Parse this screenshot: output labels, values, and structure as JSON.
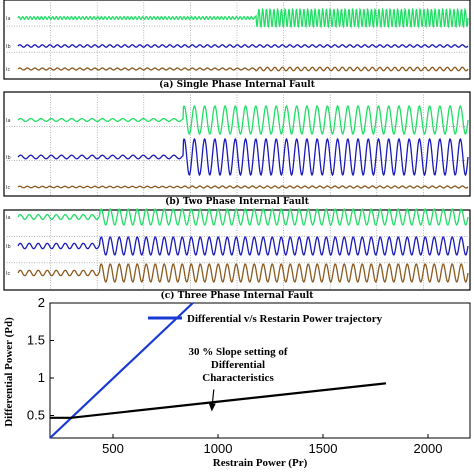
{
  "chart_data": [
    {
      "type": "line",
      "panel": "single-phase",
      "caption": "(a) Single Phase Internal Fault",
      "trace_labels": [
        "Ia",
        "Ib",
        "Ic"
      ],
      "fault_time_fraction": 0.54,
      "series": [
        {
          "color": "#22dd66",
          "pre_fault_amplitude": 0.15,
          "post_fault_amplitude": 1.0
        },
        {
          "color": "#1a1ab8",
          "pre_fault_amplitude": 0.2,
          "post_fault_amplitude": 0.2
        },
        {
          "color": "#8b5a1e",
          "pre_fault_amplitude": 0.2,
          "post_fault_amplitude": 0.35
        }
      ],
      "grid": true
    },
    {
      "type": "line",
      "panel": "two-phase",
      "caption": "(b) Two Phase Internal Fault",
      "trace_labels": [
        "Ia",
        "Ib",
        "Ic"
      ],
      "fault_time_fraction": 0.385,
      "series": [
        {
          "color": "#22dd66",
          "pre_fault_amplitude": 0.1,
          "post_fault_amplitude": 1.0
        },
        {
          "color": "#1a1ab8",
          "pre_fault_amplitude": 0.1,
          "post_fault_amplitude": 1.0
        },
        {
          "color": "#8b5a1e",
          "pre_fault_amplitude": 0.15,
          "post_fault_amplitude": 0.2
        }
      ],
      "grid": true
    },
    {
      "type": "line",
      "panel": "three-phase",
      "caption": "(c) Three Phase Internal Fault",
      "trace_labels": [
        "Ia",
        "Ib",
        "Ic"
      ],
      "fault_time_fraction": 0.205,
      "series": [
        {
          "color": "#22dd66",
          "pre_fault_amplitude": 0.3,
          "post_fault_amplitude": 1.0
        },
        {
          "color": "#1a1ab8",
          "pre_fault_amplitude": 0.3,
          "post_fault_amplitude": 1.0
        },
        {
          "color": "#8b5a1e",
          "pre_fault_amplitude": 0.3,
          "post_fault_amplitude": 1.0
        }
      ],
      "grid": true
    },
    {
      "type": "line",
      "panel": "differential-characteristic",
      "xlabel": "Restrain Power (Pr)",
      "ylabel": "Differential Power (Pd)",
      "xlim": [
        200,
        2200
      ],
      "ylim": [
        0.2,
        2
      ],
      "xticks": [
        500,
        1000,
        1500,
        2000
      ],
      "yticks": [
        0.5,
        1,
        1.5,
        2
      ],
      "grid": false,
      "legend_position": "top-right",
      "series": [
        {
          "name": "Differential v/s Restarin Power trajectory",
          "color": "#1a3ad4",
          "x": [
            200,
            880
          ],
          "y": [
            0.2,
            2.0
          ]
        },
        {
          "color": "#000000",
          "x": [
            200,
            300,
            1800
          ],
          "y": [
            0.47,
            0.47,
            0.93
          ]
        }
      ],
      "annotations": [
        {
          "text_lines": [
            "30 % Slope setting of",
            "Differential",
            "Characteristics"
          ],
          "points_to_x": 980,
          "points_to_y": 0.66
        }
      ]
    }
  ]
}
